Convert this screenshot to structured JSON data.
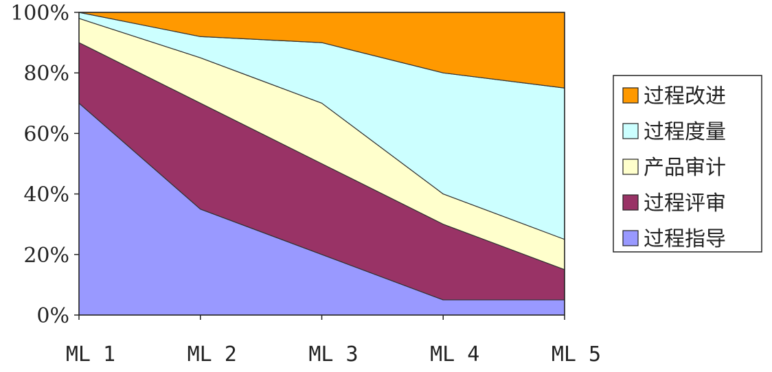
{
  "chart_data": {
    "type": "area",
    "stacked": true,
    "normalized": "percent",
    "categories": [
      "ML 1",
      "ML 2",
      "ML 3",
      "ML 4",
      "ML 5"
    ],
    "series": [
      {
        "name": "过程指导",
        "values": [
          70,
          35,
          20,
          5,
          5
        ],
        "color": "#9999ff"
      },
      {
        "name": "过程评审",
        "values": [
          20,
          35,
          30,
          25,
          10
        ],
        "color": "#993366"
      },
      {
        "name": "产品审计",
        "values": [
          8,
          15,
          20,
          10,
          10
        ],
        "color": "#ffffcc"
      },
      {
        "name": "过程度量",
        "values": [
          2,
          7,
          20,
          40,
          50
        ],
        "color": "#ccffff"
      },
      {
        "name": "过程改进",
        "values": [
          0,
          8,
          10,
          20,
          25
        ],
        "color": "#ff9900"
      }
    ],
    "yticks": [
      "0%",
      "20%",
      "40%",
      "60%",
      "80%",
      "100%"
    ],
    "ylim": [
      0,
      100
    ],
    "legend_order": [
      "过程改进",
      "过程度量",
      "产品审计",
      "过程评审",
      "过程指导"
    ],
    "legend_position": "right",
    "grid": false
  }
}
